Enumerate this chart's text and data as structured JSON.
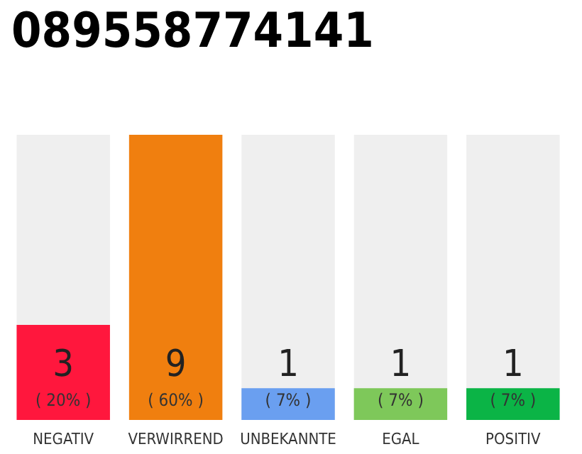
{
  "chart_data": {
    "type": "bar",
    "title": "089558774141",
    "categories": [
      "NEGATIV",
      "VERWIRREND",
      "UNBEKANNTE",
      "EGAL",
      "POSITIV"
    ],
    "values": [
      3,
      9,
      1,
      1,
      1
    ],
    "colors": [
      "#ff173d",
      "#f07f0f",
      "#6a9ff0",
      "#7ec85a",
      "#0bb446"
    ],
    "value_labels": [
      "3\n( 20% )",
      "9\n( 60% )",
      "1\n( 7% )",
      "1\n( 7% )",
      "1\n( 7% )"
    ]
  }
}
